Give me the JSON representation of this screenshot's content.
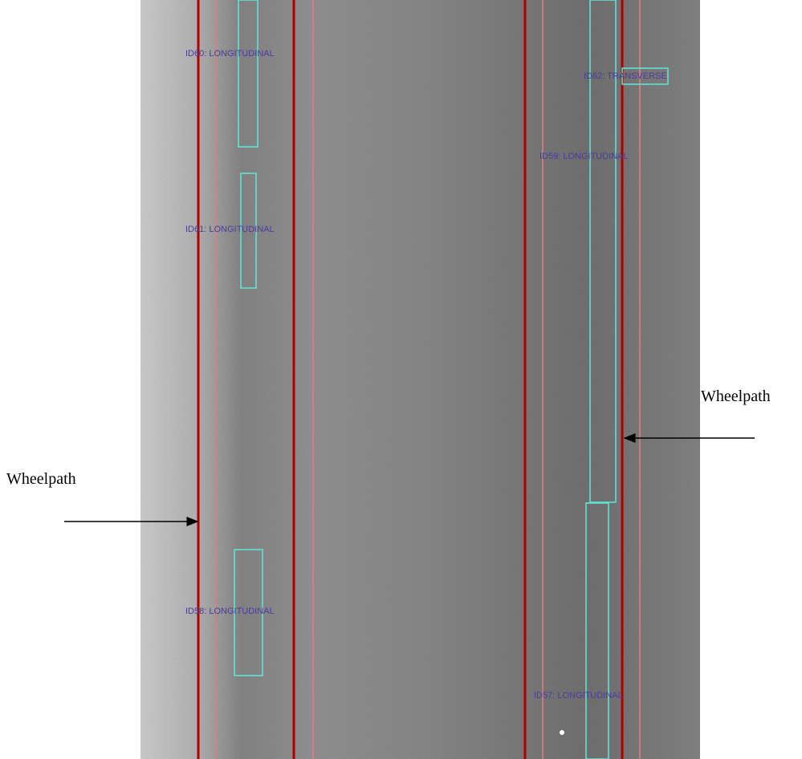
{
  "annotations": [
    {
      "label": "ID60: LONGITUDINAL"
    },
    {
      "label": "ID61: LONGITUDINAL"
    },
    {
      "label": "ID58: LONGITUDINAL"
    },
    {
      "label": "ID62: TRANSVERSE"
    },
    {
      "label": "ID59: LONGITUDINAL"
    },
    {
      "label": "ID57: LONGITUDINAL"
    }
  ],
  "callouts": [
    {
      "label": "Wheelpath"
    },
    {
      "label": "Wheelpath"
    }
  ]
}
